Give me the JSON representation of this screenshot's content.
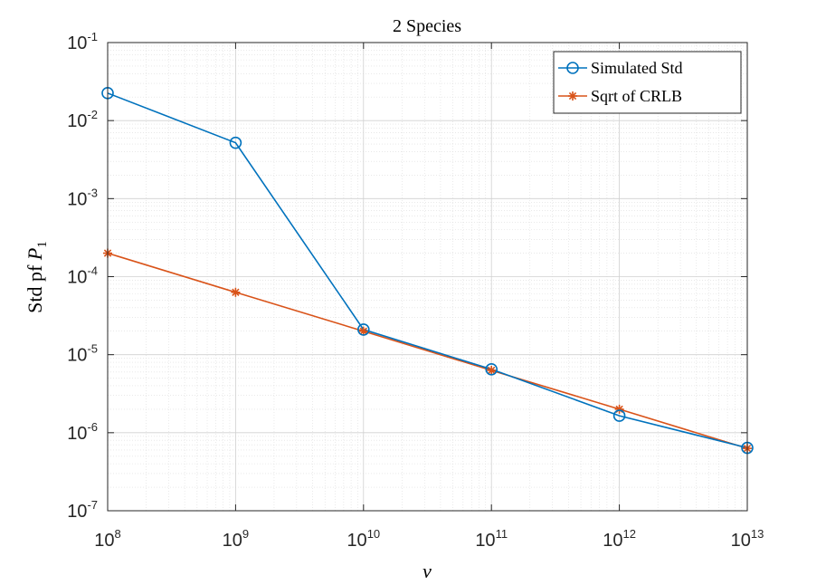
{
  "chart_data": {
    "type": "line",
    "title": "2 Species",
    "xlabel": "ν",
    "ylabel_main": "Std pf ",
    "ylabel_var": "P",
    "ylabel_sub": "1",
    "xscale": "log",
    "yscale": "log",
    "xlim": [
      100000000.0,
      10000000000000.0
    ],
    "ylim": [
      1e-07,
      0.1
    ],
    "grid": true,
    "legend_position": "top-right",
    "x_ticks": [
      {
        "base": "10",
        "exp": "8"
      },
      {
        "base": "10",
        "exp": "9"
      },
      {
        "base": "10",
        "exp": "10"
      },
      {
        "base": "10",
        "exp": "11"
      },
      {
        "base": "10",
        "exp": "12"
      },
      {
        "base": "10",
        "exp": "13"
      }
    ],
    "y_ticks": [
      {
        "base": "10",
        "exp": "-7"
      },
      {
        "base": "10",
        "exp": "-6"
      },
      {
        "base": "10",
        "exp": "-5"
      },
      {
        "base": "10",
        "exp": "-4"
      },
      {
        "base": "10",
        "exp": "-3"
      },
      {
        "base": "10",
        "exp": "-2"
      },
      {
        "base": "10",
        "exp": "-1"
      }
    ],
    "series": [
      {
        "name": "Simulated Std",
        "color": "#0072BD",
        "marker": "circle",
        "x": [
          100000000.0,
          1000000000.0,
          10000000000.0,
          100000000000.0,
          1000000000000.0,
          10000000000000.0
        ],
        "y": [
          0.0225,
          0.0052,
          2.1e-05,
          6.5e-06,
          1.65e-06,
          6.4e-07
        ]
      },
      {
        "name": "Sqrt of CRLB",
        "color": "#D95319",
        "marker": "asterisk",
        "x": [
          100000000.0,
          1000000000.0,
          10000000000.0,
          100000000000.0,
          1000000000000.0,
          10000000000000.0
        ],
        "y": [
          0.0002,
          6.3e-05,
          2e-05,
          6.3e-06,
          2e-06,
          6.3e-07
        ]
      }
    ]
  }
}
